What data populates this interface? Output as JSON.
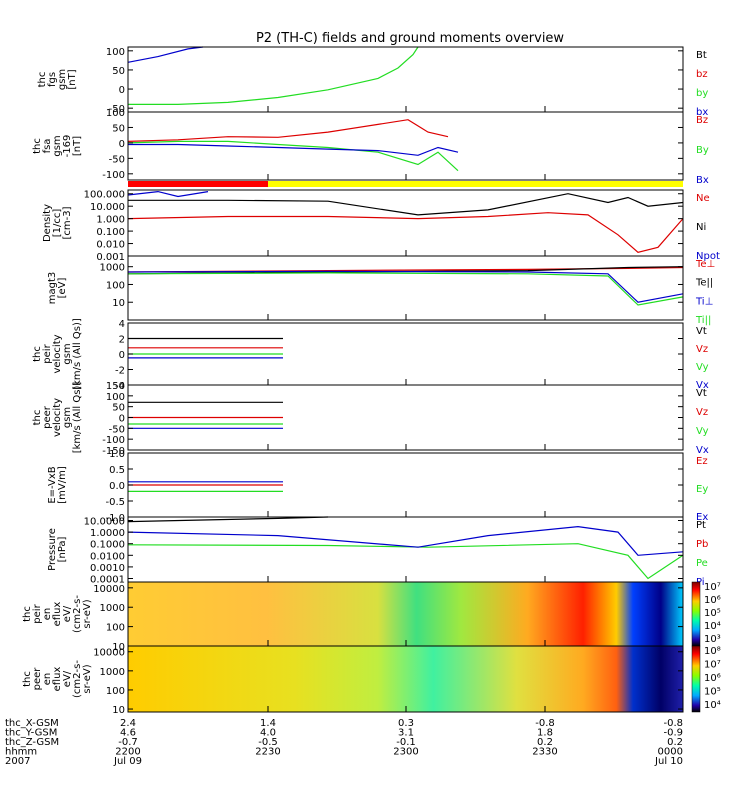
{
  "title": "P2 (TH-C) fields and ground moments overview",
  "colors": {
    "black": "#000000",
    "red": "#dd0000",
    "green": "#22dd22",
    "blue": "#0000cc",
    "yellow": "#ffff00",
    "bar_red": "#ff0000"
  },
  "chart_data": [
    {
      "type": "line",
      "ylabel": [
        "thc",
        "fgs",
        "gsm",
        "[nT]"
      ],
      "ylim": [
        -60,
        110
      ],
      "ticks": [
        "100",
        "50",
        "0",
        "-50"
      ],
      "tick_values": [
        100,
        50,
        0,
        -50
      ],
      "series": [
        {
          "name": "Bt",
          "color": "black",
          "values": []
        },
        {
          "name": "bz",
          "color": "red",
          "values": []
        },
        {
          "name": "by",
          "color": "green",
          "values": [
            [
              0,
              -40
            ],
            [
              50,
              -40
            ],
            [
              100,
              -35
            ],
            [
              150,
              -22
            ],
            [
              200,
              -2
            ],
            [
              250,
              28
            ],
            [
              270,
              55
            ],
            [
              285,
              90
            ],
            [
              290,
              110
            ]
          ]
        },
        {
          "name": "bx",
          "color": "blue",
          "values": [
            [
              0,
              70
            ],
            [
              30,
              85
            ],
            [
              60,
              105
            ],
            [
              75,
              110
            ]
          ]
        }
      ]
    },
    {
      "type": "line",
      "ylabel": [
        "thc",
        "fsa",
        "gsm",
        "-169",
        "[nT]"
      ],
      "ylim": [
        -120,
        100
      ],
      "ticks": [
        "100",
        "50",
        "0",
        "-50",
        "-100"
      ],
      "tick_values": [
        100,
        50,
        0,
        -50,
        -100
      ],
      "series": [
        {
          "name": "Bz",
          "color": "red",
          "values": [
            [
              0,
              5
            ],
            [
              50,
              10
            ],
            [
              100,
              20
            ],
            [
              150,
              18
            ],
            [
              200,
              35
            ],
            [
              250,
              60
            ],
            [
              280,
              75
            ],
            [
              300,
              35
            ],
            [
              320,
              20
            ]
          ]
        },
        {
          "name": "By",
          "color": "green",
          "values": [
            [
              0,
              0
            ],
            [
              50,
              5
            ],
            [
              100,
              5
            ],
            [
              150,
              -5
            ],
            [
              200,
              -15
            ],
            [
              250,
              -30
            ],
            [
              290,
              -70
            ],
            [
              310,
              -30
            ],
            [
              330,
              -90
            ]
          ]
        },
        {
          "name": "Bx",
          "color": "blue",
          "values": [
            [
              0,
              -5
            ],
            [
              50,
              -5
            ],
            [
              100,
              -10
            ],
            [
              150,
              -15
            ],
            [
              200,
              -20
            ],
            [
              250,
              -25
            ],
            [
              290,
              -40
            ],
            [
              310,
              -15
            ],
            [
              330,
              -30
            ]
          ]
        }
      ]
    },
    {
      "type": "line",
      "ylabel": [
        "Density",
        "[1/cc]",
        "[cm-3]"
      ],
      "log": true,
      "ylim": [
        0.001,
        200
      ],
      "ticks": [
        "100.000",
        "10.000",
        "1.000",
        "0.100",
        "0.010",
        "0.001"
      ],
      "tick_values": [
        100,
        10,
        1,
        0.1,
        0.01,
        0.001
      ],
      "series": [
        {
          "name": "Ne",
          "color": "red",
          "values": [
            [
              0,
              1.0
            ],
            [
              100,
              1.5
            ],
            [
              200,
              1.5
            ],
            [
              290,
              1.0
            ],
            [
              360,
              1.5
            ],
            [
              420,
              3.0
            ],
            [
              460,
              2.0
            ],
            [
              490,
              0.05
            ],
            [
              510,
              0.002
            ],
            [
              530,
              0.005
            ],
            [
              555,
              1.0
            ]
          ]
        },
        {
          "name": "Ni",
          "color": "black",
          "values": [
            [
              0,
              30
            ],
            [
              100,
              30
            ],
            [
              200,
              25
            ],
            [
              290,
              2.0
            ],
            [
              360,
              5.0
            ],
            [
              440,
              100
            ],
            [
              480,
              20
            ],
            [
              500,
              50
            ],
            [
              520,
              10
            ],
            [
              555,
              20
            ]
          ]
        },
        {
          "name": "Npot",
          "color": "blue",
          "values": [
            [
              0,
              80
            ],
            [
              30,
              150
            ],
            [
              50,
              60
            ],
            [
              80,
              150
            ]
          ]
        }
      ]
    },
    {
      "type": "line",
      "ylabel": [
        "magt3",
        "[eV]"
      ],
      "log": true,
      "ylim": [
        1,
        4000
      ],
      "ticks": [
        "1000",
        "100",
        "10"
      ],
      "tick_values": [
        1000,
        100,
        10
      ],
      "series": [
        {
          "name": "Te⊥",
          "color": "red",
          "values": [
            [
              0,
              500
            ],
            [
              200,
              600
            ],
            [
              400,
              700
            ],
            [
              500,
              800
            ],
            [
              555,
              900
            ]
          ]
        },
        {
          "name": "Te||",
          "color": "black",
          "values": [
            [
              0,
              400
            ],
            [
              200,
              500
            ],
            [
              400,
              600
            ],
            [
              500,
              900
            ],
            [
              555,
              1000
            ]
          ]
        },
        {
          "name": "Ti⊥",
          "color": "blue",
          "values": [
            [
              0,
              500
            ],
            [
              200,
              550
            ],
            [
              400,
              500
            ],
            [
              480,
              400
            ],
            [
              510,
              10
            ],
            [
              555,
              30
            ]
          ]
        },
        {
          "name": "Ti||",
          "color": "green",
          "values": [
            [
              0,
              400
            ],
            [
              200,
              450
            ],
            [
              400,
              400
            ],
            [
              480,
              300
            ],
            [
              510,
              7
            ],
            [
              555,
              20
            ]
          ]
        }
      ]
    },
    {
      "type": "line",
      "ylabel": [
        "thc",
        "peir",
        "velocity",
        "gsm",
        "[km/s (All Qs)]"
      ],
      "ylim": [
        -4,
        4
      ],
      "ticks": [
        "4",
        "2",
        "0",
        "-2",
        "-4"
      ],
      "tick_values": [
        4,
        2,
        0,
        -2,
        -4
      ],
      "series": [
        {
          "name": "Vt",
          "color": "black",
          "values": [
            [
              0,
              2.0
            ],
            [
              155,
              2.0
            ]
          ]
        },
        {
          "name": "Vz",
          "color": "red",
          "values": [
            [
              0,
              0.8
            ],
            [
              155,
              0.8
            ]
          ]
        },
        {
          "name": "Vy",
          "color": "green",
          "values": [
            [
              0,
              0.0
            ],
            [
              155,
              0.0
            ]
          ]
        },
        {
          "name": "Vx",
          "color": "blue",
          "values": [
            [
              0,
              -0.5
            ],
            [
              155,
              -0.5
            ]
          ]
        }
      ]
    },
    {
      "type": "line",
      "ylabel": [
        "thc",
        "peer",
        "velocity",
        "gsm",
        "[km/s (All Qs)]"
      ],
      "ylim": [
        -150,
        150
      ],
      "ticks": [
        "150",
        "100",
        "50",
        "0",
        "-50",
        "-100",
        "-150"
      ],
      "tick_values": [
        150,
        100,
        50,
        0,
        -50,
        -100,
        -150
      ],
      "series": [
        {
          "name": "Vt",
          "color": "black",
          "values": [
            [
              0,
              70
            ],
            [
              155,
              70
            ]
          ]
        },
        {
          "name": "Vz",
          "color": "red",
          "values": [
            [
              0,
              0
            ],
            [
              155,
              0
            ]
          ]
        },
        {
          "name": "Vy",
          "color": "green",
          "values": [
            [
              0,
              -30
            ],
            [
              155,
              -30
            ]
          ]
        },
        {
          "name": "Vx",
          "color": "blue",
          "values": [
            [
              0,
              -50
            ],
            [
              155,
              -50
            ]
          ]
        }
      ]
    },
    {
      "type": "line",
      "ylabel": [
        "E=-VxB",
        "[mV/m]"
      ],
      "ylim": [
        -1.0,
        1.0
      ],
      "ticks": [
        "1.0",
        "0.5",
        "0.0",
        "-0.5",
        "-1.0"
      ],
      "tick_values": [
        1.0,
        0.5,
        0.0,
        -0.5,
        -1.0
      ],
      "series": [
        {
          "name": "Ez",
          "color": "red",
          "values": [
            [
              0,
              0.0
            ],
            [
              155,
              0.0
            ]
          ]
        },
        {
          "name": "Ey",
          "color": "green",
          "values": [
            [
              0,
              -0.2
            ],
            [
              155,
              -0.2
            ]
          ]
        },
        {
          "name": "Ex",
          "color": "blue",
          "values": [
            [
              0,
              0.1
            ],
            [
              155,
              0.1
            ]
          ]
        }
      ]
    },
    {
      "type": "line",
      "ylabel": [
        "Pressure",
        "[nPa]"
      ],
      "log": true,
      "ylim": [
        5e-05,
        20
      ],
      "ticks": [
        "10.0000",
        "1.0000",
        "0.1000",
        "0.0100",
        "0.0010",
        "0.0001"
      ],
      "tick_values": [
        10,
        1,
        0.1,
        0.01,
        0.001,
        0.0001
      ],
      "series": [
        {
          "name": "Pt",
          "color": "black",
          "values": [
            [
              0,
              8
            ],
            [
              150,
              15
            ],
            [
              200,
              20
            ]
          ]
        },
        {
          "name": "Pb",
          "color": "red",
          "values": []
        },
        {
          "name": "Pe",
          "color": "green",
          "values": [
            [
              0,
              0.08
            ],
            [
              200,
              0.07
            ],
            [
              300,
              0.05
            ],
            [
              450,
              0.1
            ],
            [
              500,
              0.01
            ],
            [
              520,
              0.0001
            ],
            [
              555,
              0.01
            ]
          ]
        },
        {
          "name": "Pi",
          "color": "blue",
          "values": [
            [
              0,
              1.0
            ],
            [
              150,
              0.5
            ],
            [
              290,
              0.05
            ],
            [
              360,
              0.5
            ],
            [
              450,
              3.0
            ],
            [
              490,
              1.0
            ],
            [
              510,
              0.01
            ],
            [
              555,
              0.02
            ]
          ]
        }
      ]
    },
    {
      "type": "heatmap",
      "ylabel": [
        "thc",
        "peir",
        "en",
        "eflux",
        "eV/",
        "(cm2-s-",
        "sr-eV)"
      ],
      "ylim": [
        10,
        20000
      ],
      "log": true,
      "ticks": [
        "10000",
        "1000",
        "100",
        "10"
      ],
      "tick_values": [
        10000,
        1000,
        100,
        10
      ],
      "colorbar": [
        "10⁷",
        "10⁶",
        "10⁵",
        "10⁴",
        "10³"
      ]
    },
    {
      "type": "heatmap",
      "ylabel": [
        "thc",
        "peer",
        "en",
        "eflux",
        "eV/",
        "(cm2-s-",
        "sr-eV)"
      ],
      "ylim": [
        7,
        20000
      ],
      "log": true,
      "ticks": [
        "10000",
        "1000",
        "100",
        "10"
      ],
      "tick_values": [
        10000,
        1000,
        100,
        10
      ],
      "colorbar": [
        "10⁸",
        "10⁷",
        "10⁶",
        "10⁵",
        "10⁴"
      ]
    }
  ],
  "time_axis": {
    "row_labels": [
      "thc_X-GSM",
      "thc_Y-GSM",
      "thc_Z-GSM",
      "hhmm",
      "2007"
    ],
    "columns": [
      [
        "2.4",
        "4.6",
        "-0.7",
        "2200",
        "Jul 09"
      ],
      [
        "1.4",
        "4.0",
        "-0.5",
        "2230",
        ""
      ],
      [
        "0.3",
        "3.1",
        "-0.1",
        "2300",
        ""
      ],
      [
        "-0.8",
        "1.8",
        "0.2",
        "2330",
        ""
      ],
      [
        "-0.8",
        "-0.9",
        "0.2",
        "0000",
        "Jul 10"
      ]
    ]
  }
}
